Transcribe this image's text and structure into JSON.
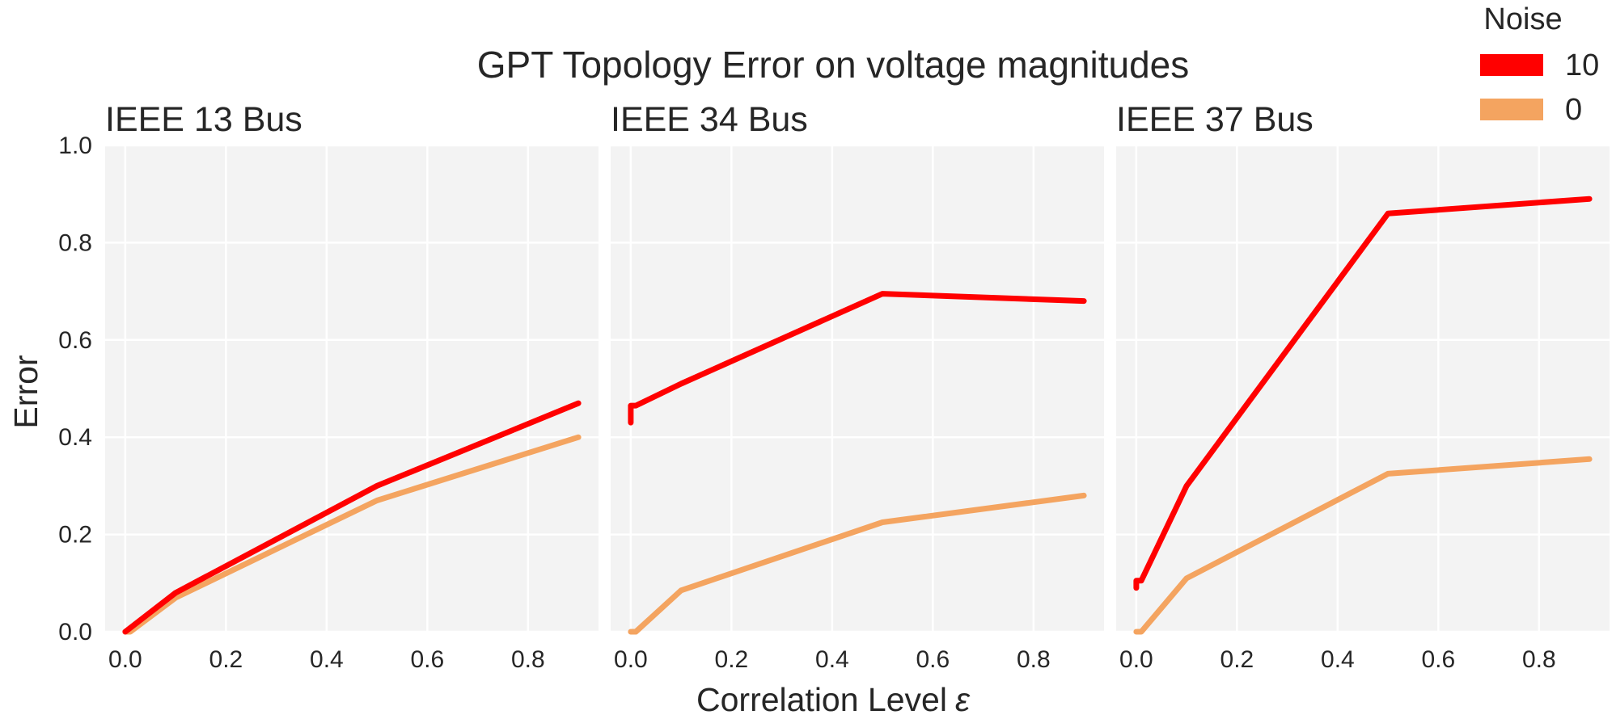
{
  "chart_data": {
    "type": "line",
    "title": "GPT Topology Error on voltage magnitudes",
    "xlabel": "Correlation Level",
    "xlabel_symbol": "ε",
    "ylabel": "Error",
    "legend": {
      "title": "Noise",
      "position": "top-right",
      "entries": [
        {
          "label": "10",
          "color": "#ff0000"
        },
        {
          "label": "0",
          "color": "#f4a460"
        }
      ]
    },
    "xlim": [
      -0.04,
      0.94
    ],
    "ylim": [
      0.0,
      1.0
    ],
    "xticks": [
      "0.0",
      "0.2",
      "0.4",
      "0.6",
      "0.8"
    ],
    "xtick_values": [
      0.0,
      0.2,
      0.4,
      0.6,
      0.8
    ],
    "yticks": [
      "0.0",
      "0.2",
      "0.4",
      "0.6",
      "0.8",
      "1.0"
    ],
    "ytick_values": [
      0.0,
      0.2,
      0.4,
      0.6,
      0.8,
      1.0
    ],
    "grid": true,
    "panels": [
      {
        "title": "IEEE 13 Bus",
        "series": [
          {
            "name": "10",
            "color": "#ff0000",
            "x": [
              0.0,
              0.1,
              0.5,
              0.9
            ],
            "values": [
              0.0,
              0.08,
              0.3,
              0.47
            ]
          },
          {
            "name": "0",
            "color": "#f4a460",
            "x": [
              0.0,
              0.01,
              0.1,
              0.5,
              0.9
            ],
            "values": [
              0.0,
              0.0,
              0.07,
              0.27,
              0.4
            ]
          }
        ]
      },
      {
        "title": "IEEE 34 Bus",
        "series": [
          {
            "name": "10",
            "color": "#ff0000",
            "x": [
              0.0,
              0.0,
              0.01,
              0.1,
              0.5,
              0.9
            ],
            "values": [
              0.43,
              0.465,
              0.465,
              0.51,
              0.695,
              0.68
            ]
          },
          {
            "name": "0",
            "color": "#f4a460",
            "x": [
              0.0,
              0.01,
              0.1,
              0.5,
              0.9
            ],
            "values": [
              0.0,
              0.0,
              0.085,
              0.225,
              0.28
            ]
          }
        ]
      },
      {
        "title": "IEEE 37 Bus",
        "series": [
          {
            "name": "10",
            "color": "#ff0000",
            "x": [
              0.0,
              0.0,
              0.01,
              0.1,
              0.5,
              0.9
            ],
            "values": [
              0.09,
              0.105,
              0.105,
              0.3,
              0.86,
              0.89
            ]
          },
          {
            "name": "0",
            "color": "#f4a460",
            "x": [
              0.0,
              0.01,
              0.1,
              0.5,
              0.9
            ],
            "values": [
              0.0,
              0.0,
              0.11,
              0.325,
              0.355
            ]
          }
        ]
      }
    ]
  }
}
